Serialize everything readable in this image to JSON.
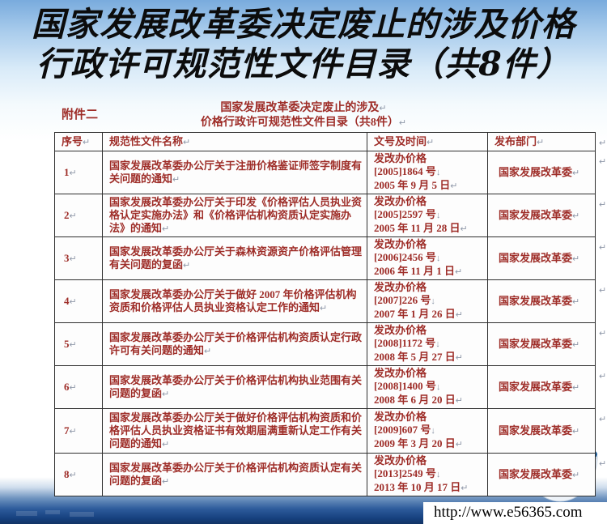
{
  "page": {
    "title_line1": "国家发展改革委决定废止的涉及价格",
    "title_line2": "行政许可规范性文件目录（共8件）"
  },
  "document": {
    "attachment_label": "附件二",
    "caption_line1": "国家发展改革委决定废止的涉及↵",
    "caption_line2": "价格行政许可规范性文件目录（共8件）↵",
    "table": {
      "headers": [
        "序号↵",
        "规范性文件名称↵",
        "文号及时间↵",
        "发布部门↵"
      ],
      "row_end_mark": "↵",
      "rows": [
        {
          "no": "1↵",
          "name": "国家发展改革委办公厅关于注册价格鉴证师签字制度有关问题的通知↵",
          "doc_lines": [
            "发改办价格",
            "[2005]1864 号↓",
            "2005 年 9 月 5 日↵"
          ],
          "dept": "国家发展改革委↵"
        },
        {
          "no": "2↵",
          "name": "国家发展改革委办公厅关于印发《价格评估人员执业资格认定实施办法》和《价格评估机构资质认定实施办法》的通知↵",
          "doc_lines": [
            "发改办价格",
            "[2005]2597 号↓",
            "2005 年 11 月 28 日↵"
          ],
          "dept": "国家发展改革委↵"
        },
        {
          "no": "3↵",
          "name": "国家发展改革委办公厅关于森林资源资产价格评估管理有关问题的复函↵",
          "doc_lines": [
            "发改办价格",
            "[2006]2456 号↓",
            "2006 年 11 月 1 日↵"
          ],
          "dept": "国家发展改革委↵"
        },
        {
          "no": "4↵",
          "name": "国家发展改革委办公厅关于做好 2007 年价格评估机构资质和价格评估人员执业资格认定工作的通知↵",
          "doc_lines": [
            "发改办价格",
            "[2007]226 号↓",
            "2007 年 1 月 26 日↵"
          ],
          "dept": "国家发展改革委↵"
        },
        {
          "no": "5↵",
          "name": "国家发展改革委办公厅关于价格评估机构资质认定行政许可有关问题的通知↵",
          "doc_lines": [
            "发改办价格",
            "[2008]1172 号↓",
            "2008 年 5 月 27 日↵"
          ],
          "dept": "国家发展改革委↵"
        },
        {
          "no": "6↵",
          "name": "国家发展改革委办公厅关于价格评估机构执业范围有关问题的复函↵",
          "doc_lines": [
            "发改办价格",
            "[2008]1400 号↓",
            "2008 年 6 月 20 日↵"
          ],
          "dept": "国家发展改革委↵"
        },
        {
          "no": "7↵",
          "name": "国家发展改革委办公厅关于做好价格评估机构资质和价格评估人员执业资格证书有效期届满重新认定工作有关问题的通知↵",
          "doc_lines": [
            "发改办价格",
            "[2009]607 号↓",
            "2009 年 3 月 20 日↵"
          ],
          "dept": "国家发展改革委↵"
        },
        {
          "no": "8↵",
          "name": "国家发展改革委办公厅关于价格评估机构资质认定有关问题的复函↵",
          "doc_lines": [
            "发改办价格",
            "[2013]2549 号↓",
            "2013 年 10 月 17 日↵"
          ],
          "dept": "国家发展改革委↵"
        }
      ]
    }
  },
  "footer": {
    "url": "http://www.e56365.com"
  },
  "icons": {
    "globe": "globe-city-icon",
    "return_mark": "↵",
    "line_break_mark": "↓"
  },
  "colors": {
    "doc_text": "#9e2d28",
    "title_text": "#0c0c0c",
    "table_border": "#2f2f2f",
    "formatting_mark": "#8f98a9",
    "ocean_deep": "#16407e"
  }
}
